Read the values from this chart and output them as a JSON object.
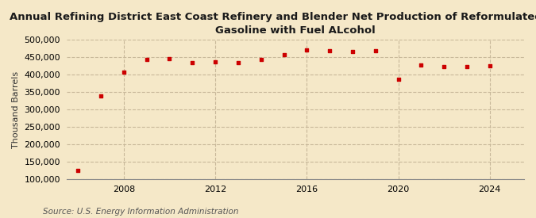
{
  "title": "Annual Refining District East Coast Refinery and Blender Net Production of Reformulated Motor\nGasoline with Fuel ALcohol",
  "ylabel": "Thousand Barrels",
  "source": "Source: U.S. Energy Information Administration",
  "background_color": "#f5e8c8",
  "plot_bg_color": "#f5e8c8",
  "marker_color": "#cc0000",
  "years": [
    2006,
    2007,
    2008,
    2009,
    2010,
    2011,
    2012,
    2013,
    2014,
    2015,
    2016,
    2017,
    2018,
    2019,
    2020,
    2021,
    2022,
    2023,
    2024
  ],
  "values": [
    125000,
    338000,
    407000,
    443000,
    446000,
    434000,
    437000,
    435000,
    443000,
    457000,
    471000,
    468000,
    466000,
    468000,
    386000,
    428000,
    424000,
    424000,
    425000
  ],
  "ylim": [
    100000,
    500000
  ],
  "yticks": [
    100000,
    150000,
    200000,
    250000,
    300000,
    350000,
    400000,
    450000,
    500000
  ],
  "xticks": [
    2008,
    2012,
    2016,
    2020,
    2024
  ],
  "xlim": [
    2005.5,
    2025.5
  ],
  "grid_color": "#c8b89a",
  "title_fontsize": 9.5,
  "ylabel_fontsize": 8,
  "tick_fontsize": 8,
  "source_fontsize": 7.5
}
